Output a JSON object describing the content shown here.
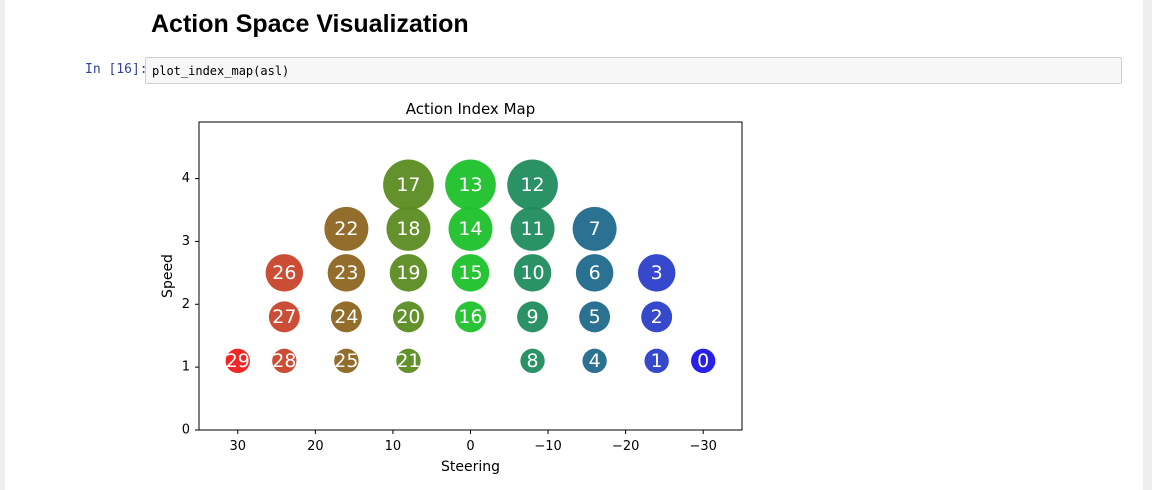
{
  "notebook": {
    "heading": "Action Space Visualization",
    "prompt": "In [16]:",
    "code": "plot_index_map(asl)"
  },
  "chart_data": {
    "type": "scatter",
    "title": "Action Index Map",
    "xlabel": "Steering",
    "ylabel": "Speed",
    "xlim": [
      35,
      -35
    ],
    "ylim": [
      0,
      4.9
    ],
    "xticks": [
      30,
      20,
      10,
      0,
      -10,
      -20,
      -30
    ],
    "xtick_labels": [
      "30",
      "20",
      "10",
      "0",
      "−10",
      "−20",
      "−30"
    ],
    "yticks": [
      0,
      1,
      2,
      3,
      4
    ],
    "ytick_labels": [
      "0",
      "1",
      "2",
      "3",
      "4"
    ],
    "grid": false,
    "points": [
      {
        "label": "0",
        "x": -30,
        "y": 1.1,
        "color": "#1b14e8"
      },
      {
        "label": "1",
        "x": -24,
        "y": 1.1,
        "color": "#2b3fc9"
      },
      {
        "label": "2",
        "x": -24,
        "y": 1.8,
        "color": "#2b3fc9"
      },
      {
        "label": "3",
        "x": -24,
        "y": 2.5,
        "color": "#2b3fc9"
      },
      {
        "label": "4",
        "x": -16,
        "y": 1.1,
        "color": "#206a8c"
      },
      {
        "label": "5",
        "x": -16,
        "y": 1.8,
        "color": "#206a8c"
      },
      {
        "label": "6",
        "x": -16,
        "y": 2.5,
        "color": "#206a8c"
      },
      {
        "label": "7",
        "x": -16,
        "y": 3.2,
        "color": "#206a8c"
      },
      {
        "label": "8",
        "x": -8,
        "y": 1.1,
        "color": "#208c5e"
      },
      {
        "label": "9",
        "x": -8,
        "y": 1.8,
        "color": "#208c5e"
      },
      {
        "label": "10",
        "x": -8,
        "y": 2.5,
        "color": "#208c5e"
      },
      {
        "label": "11",
        "x": -8,
        "y": 3.2,
        "color": "#208c5e"
      },
      {
        "label": "12",
        "x": -8,
        "y": 3.9,
        "color": "#208c5e"
      },
      {
        "label": "13",
        "x": 0,
        "y": 3.9,
        "color": "#1ec12b"
      },
      {
        "label": "14",
        "x": 0,
        "y": 3.2,
        "color": "#1ec12b"
      },
      {
        "label": "15",
        "x": 0,
        "y": 2.5,
        "color": "#1ec12b"
      },
      {
        "label": "16",
        "x": 0,
        "y": 1.8,
        "color": "#1ec12b"
      },
      {
        "label": "17",
        "x": 8,
        "y": 3.9,
        "color": "#5b8c22"
      },
      {
        "label": "18",
        "x": 8,
        "y": 3.2,
        "color": "#5b8c22"
      },
      {
        "label": "19",
        "x": 8,
        "y": 2.5,
        "color": "#5b8c22"
      },
      {
        "label": "20",
        "x": 8,
        "y": 1.8,
        "color": "#5b8c22"
      },
      {
        "label": "21",
        "x": 8,
        "y": 1.1,
        "color": "#5b8c22"
      },
      {
        "label": "22",
        "x": 16,
        "y": 3.2,
        "color": "#8c6520"
      },
      {
        "label": "23",
        "x": 16,
        "y": 2.5,
        "color": "#8c6520"
      },
      {
        "label": "24",
        "x": 16,
        "y": 1.8,
        "color": "#8c6520"
      },
      {
        "label": "25",
        "x": 16,
        "y": 1.1,
        "color": "#8c6520"
      },
      {
        "label": "26",
        "x": 24,
        "y": 2.5,
        "color": "#c9432b"
      },
      {
        "label": "27",
        "x": 24,
        "y": 1.8,
        "color": "#c9432b"
      },
      {
        "label": "28",
        "x": 24,
        "y": 1.1,
        "color": "#c9432b"
      },
      {
        "label": "29",
        "x": 30,
        "y": 1.1,
        "color": "#ee1b1b"
      }
    ]
  }
}
